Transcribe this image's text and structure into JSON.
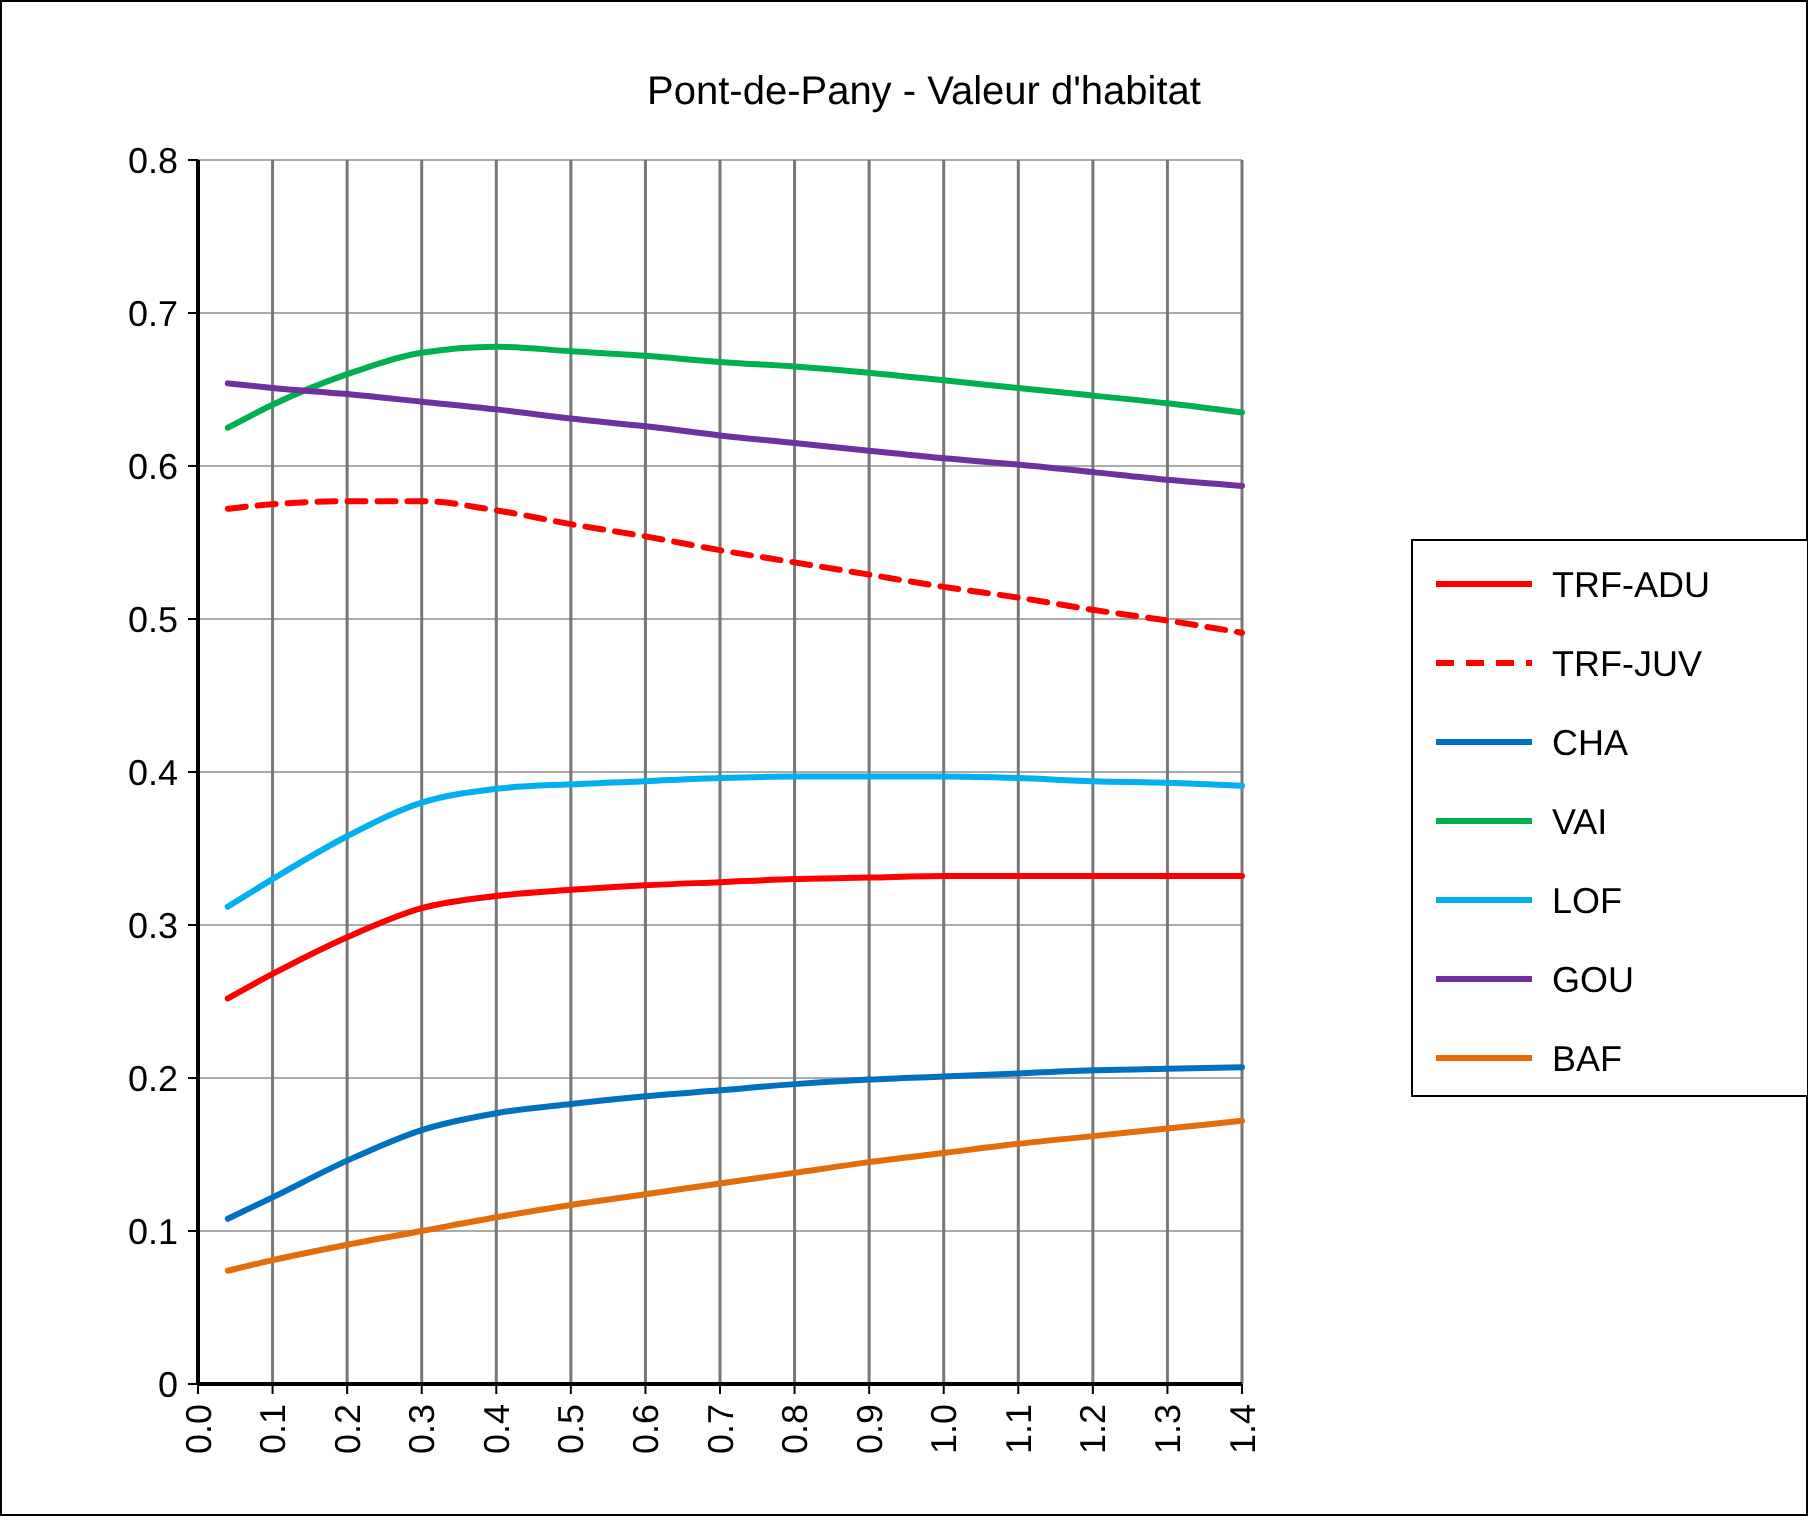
{
  "chart_data": {
    "type": "line",
    "title": "Pont-de-Pany - Valeur d'habitat",
    "x": [
      0.04,
      0.1,
      0.2,
      0.3,
      0.4,
      0.5,
      0.6,
      0.7,
      0.8,
      0.9,
      1.0,
      1.1,
      1.2,
      1.3,
      1.4
    ],
    "xlim": [
      0,
      1.4
    ],
    "xticks": [
      {
        "value": 0,
        "label": "0.0"
      },
      0.1,
      0.2,
      0.3,
      0.4,
      0.5,
      0.6,
      0.7,
      0.8,
      0.9,
      {
        "value": 1,
        "label": "1.0"
      },
      1.1,
      1.2,
      1.3,
      1.4
    ],
    "ylim": [
      0,
      0.8
    ],
    "yticks": [
      0,
      0.1,
      0.2,
      0.3,
      0.4,
      0.5,
      0.6,
      0.7,
      0.8
    ],
    "grid": true,
    "legend": "right",
    "marker": "none",
    "series": [
      {
        "name": "TRF-ADU",
        "color": "#ff0000",
        "values": [
          0.252,
          0.268,
          0.292,
          0.311,
          0.319,
          0.323,
          0.326,
          0.328,
          0.33,
          0.331,
          0.332,
          0.332,
          0.332,
          0.332,
          0.332
        ]
      },
      {
        "name": "TRF-JUV",
        "color": "#ff0000",
        "line_style": "dashed",
        "values": [
          0.572,
          0.575,
          0.577,
          0.577,
          0.571,
          0.562,
          0.554,
          0.545,
          0.537,
          0.529,
          0.521,
          0.514,
          0.506,
          0.499,
          0.491
        ]
      },
      {
        "name": "CHA",
        "color": "#0070c0",
        "values": [
          0.108,
          0.122,
          0.146,
          0.166,
          0.177,
          0.183,
          0.188,
          0.192,
          0.196,
          0.199,
          0.201,
          0.203,
          0.205,
          0.206,
          0.207
        ]
      },
      {
        "name": "VAI",
        "color": "#00b050",
        "values": [
          0.625,
          0.64,
          0.66,
          0.674,
          0.678,
          0.675,
          0.672,
          0.668,
          0.665,
          0.661,
          0.656,
          0.651,
          0.646,
          0.641,
          0.635
        ]
      },
      {
        "name": "LOF",
        "color": "#00b0f0",
        "values": [
          0.312,
          0.33,
          0.358,
          0.38,
          0.389,
          0.392,
          0.394,
          0.396,
          0.397,
          0.397,
          0.397,
          0.396,
          0.394,
          0.393,
          0.391
        ]
      },
      {
        "name": "GOU",
        "color": "#7030a0",
        "values": [
          0.654,
          0.651,
          0.647,
          0.642,
          0.637,
          0.631,
          0.626,
          0.62,
          0.615,
          0.61,
          0.605,
          0.601,
          0.596,
          0.591,
          0.587
        ]
      },
      {
        "name": "BAF",
        "color": "#e46c0a",
        "values": [
          0.074,
          0.081,
          0.091,
          0.1,
          0.109,
          0.117,
          0.124,
          0.131,
          0.138,
          0.145,
          0.151,
          0.157,
          0.162,
          0.167,
          0.172
        ]
      }
    ]
  }
}
